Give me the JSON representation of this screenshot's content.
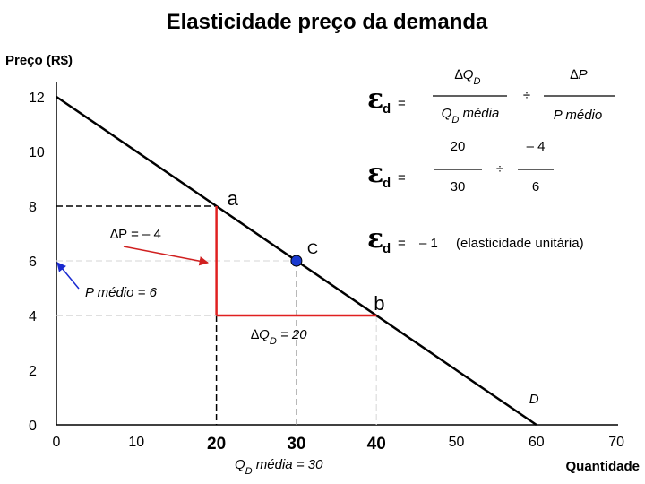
{
  "chart_data": {
    "type": "line",
    "title": "Elasticidade preço da demanda",
    "ylabel": "Preço (R$)",
    "xlabel": "Quantidade",
    "xlim": [
      0,
      70
    ],
    "ylim": [
      0,
      13
    ],
    "x_ticks": [
      0,
      10,
      20,
      30,
      40,
      50,
      60,
      70
    ],
    "y_ticks": [
      0,
      2,
      4,
      6,
      8,
      10,
      12
    ],
    "grid": false,
    "series": [
      {
        "name": "D",
        "x": [
          0,
          60
        ],
        "y": [
          12,
          0
        ]
      }
    ],
    "points": [
      {
        "label": "a",
        "x": 20,
        "y": 8
      },
      {
        "label": "C",
        "x": 30,
        "y": 6
      },
      {
        "label": "b",
        "x": 40,
        "y": 4
      }
    ],
    "annotations": {
      "delta_p": "∆P = – 4",
      "p_medio": "P médio = 6",
      "delta_q": "∆QD = 20",
      "q_media": "QD média = 30"
    },
    "formula": {
      "eps": "ε",
      "sub": "d",
      "eq": "=",
      "row1": {
        "num1": "∆QD",
        "den1": "QD média",
        "op": "÷",
        "num2": "∆P",
        "den2": "P médio"
      },
      "row2": {
        "num1": "20",
        "den1": "30",
        "op": "÷",
        "num2": "– 4",
        "den2": "6"
      },
      "row3": {
        "value": "– 1",
        "note": "(elasticidade unitária)"
      }
    },
    "colors": {
      "line": "#000000",
      "highlight": "#e02020",
      "point": "#1a3ad0",
      "arrow_blue": "#1a2ad0",
      "arrow_red": "#d02020",
      "dashed": "#000000"
    }
  }
}
